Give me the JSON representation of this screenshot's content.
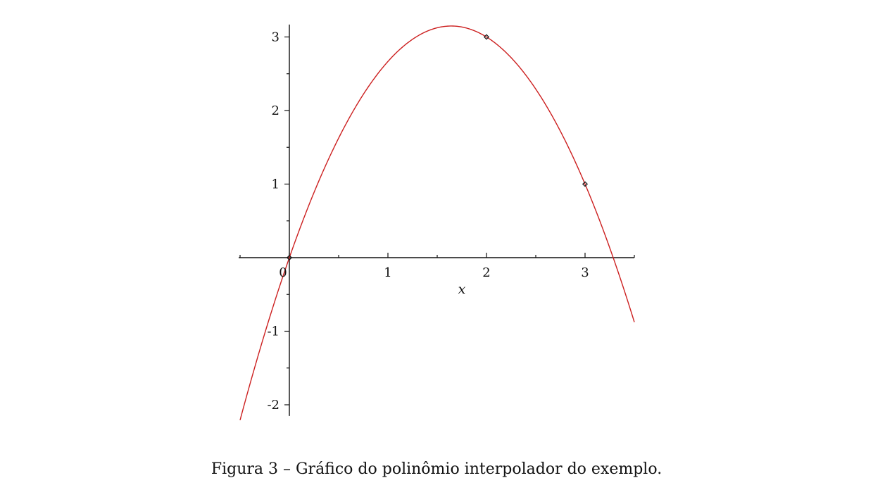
{
  "chart_data": {
    "type": "line",
    "title": "",
    "xlabel": "x",
    "ylabel": "",
    "xlim": [
      -0.5,
      3.5
    ],
    "ylim": [
      -2.2,
      3.15
    ],
    "x_ticks": [
      0,
      1,
      2,
      3
    ],
    "x_tick_labels": [
      "0",
      "1",
      "2",
      "3"
    ],
    "y_ticks": [
      -2,
      -1,
      1,
      2,
      3
    ],
    "y_tick_labels": [
      "-2",
      "-1",
      "1",
      "2",
      "3"
    ],
    "grid": false,
    "colors": {
      "curve": "#cc1f1f",
      "axes": "#111111",
      "markers": "#111111"
    },
    "series": [
      {
        "type": "line",
        "function": {
          "kind": "polynomial",
          "coefficients": [
            0,
            3.8333,
            -1.1667
          ],
          "description": "y = (23/6)x - (7/6)x^2"
        },
        "x_range": [
          -0.5,
          3.5
        ]
      },
      {
        "type": "scatter",
        "marker": "diamond",
        "points": [
          {
            "x": 0,
            "y": 0
          },
          {
            "x": 2,
            "y": 3
          },
          {
            "x": 3,
            "y": 1
          }
        ]
      }
    ]
  },
  "caption": "Figura 3 – Gráfico do polinômio interpolador do exemplo."
}
